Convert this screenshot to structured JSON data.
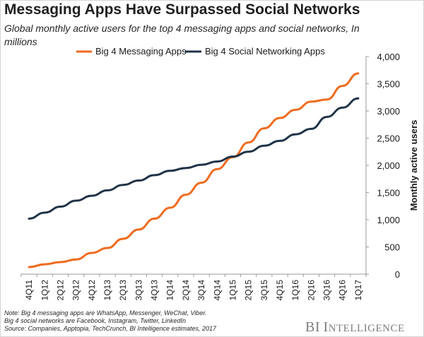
{
  "title": "Messaging Apps Have Surpassed Social Networks",
  "subtitle": "Global monthly active users for the top 4 messaging apps and social networks, In millions",
  "notes": [
    "Note: Big 4 messaging apps are WhatsApp, Messenger, WeChat, Viber.",
    "Big 4 social networks are Facebook, Instagram, Twitter, LinkedIn",
    "Source: Companies,  Apptopia, TechCrunch,  BI Intelligence estimates, 2017"
  ],
  "brand": {
    "b": "B",
    "i": "I",
    "in": "I",
    "ntelligence": "NTELLIGENCE"
  },
  "chart_data": {
    "type": "line",
    "title": "Messaging Apps Have Surpassed Social Networks",
    "subtitle": "Global monthly active users for the top 4 messaging apps and social networks, In millions",
    "xlabel": "",
    "ylabel": "Monthly active users",
    "ylim": [
      0,
      4000
    ],
    "yticks": [
      0,
      500,
      1000,
      1500,
      2000,
      2500,
      3000,
      3500,
      4000
    ],
    "ytick_labels": [
      "0",
      "500",
      "1,000",
      "1,500",
      "2,000",
      "2,500",
      "3,000",
      "3,500",
      "4,000"
    ],
    "grid": false,
    "legend_position": "top",
    "y_axis_side": "right",
    "categories": [
      "4Q11",
      "1Q12",
      "2Q12",
      "3Q12",
      "4Q12",
      "1Q13",
      "2Q13",
      "3Q13",
      "4Q13",
      "1Q14",
      "2Q14",
      "3Q14",
      "4Q14",
      "1Q15",
      "2Q15",
      "3Q15",
      "4Q15",
      "1Q16",
      "2Q16",
      "3Q16",
      "4Q16",
      "1Q17"
    ],
    "series": [
      {
        "name": "Big 4 Messaging Apps",
        "color": "#ee6b1e",
        "values": [
          130,
          180,
          220,
          270,
          390,
          480,
          650,
          820,
          1020,
          1220,
          1460,
          1680,
          1930,
          2150,
          2420,
          2680,
          2870,
          3020,
          3170,
          3210,
          3460,
          3690
        ]
      },
      {
        "name": "Big 4 Social Networking Apps",
        "color": "#203348",
        "values": [
          1020,
          1130,
          1240,
          1350,
          1440,
          1540,
          1640,
          1720,
          1820,
          1900,
          1950,
          2010,
          2070,
          2160,
          2250,
          2360,
          2450,
          2570,
          2670,
          2890,
          3060,
          3230
        ]
      }
    ]
  }
}
